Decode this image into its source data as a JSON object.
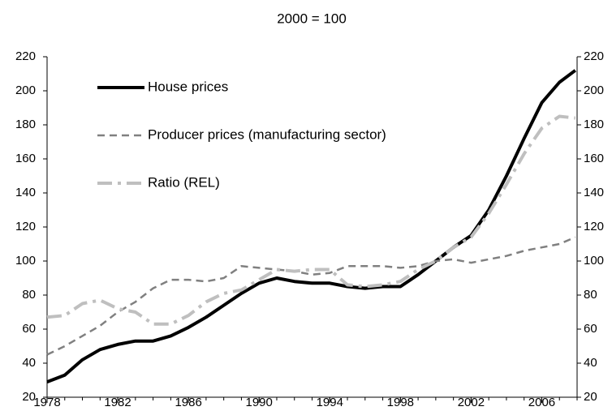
{
  "chart_data": {
    "type": "line",
    "title": "2000 = 100",
    "x": [
      1978,
      1979,
      1980,
      1981,
      1982,
      1983,
      1984,
      1985,
      1986,
      1987,
      1988,
      1989,
      1990,
      1991,
      1992,
      1993,
      1994,
      1995,
      1996,
      1997,
      1998,
      1999,
      2000,
      2001,
      2002,
      2003,
      2004,
      2005,
      2006,
      2007,
      2007.9
    ],
    "series": [
      {
        "name": "House prices",
        "color": "#000000",
        "values": [
          29,
          33,
          42,
          48,
          51,
          53,
          53,
          56,
          61,
          67,
          74,
          81,
          87,
          90,
          88,
          87,
          87,
          85,
          84,
          85,
          85,
          92,
          100,
          108,
          115,
          130,
          150,
          172,
          193,
          205,
          212
        ]
      },
      {
        "name": "Producer prices (manufacturing sector)",
        "color": "#808080",
        "values": [
          45,
          50,
          56,
          62,
          70,
          76,
          84,
          89,
          89,
          88,
          90,
          97,
          96,
          95,
          94,
          92,
          93,
          97,
          97,
          97,
          96,
          97,
          100,
          101,
          99,
          101,
          103,
          106,
          108,
          110,
          114
        ]
      },
      {
        "name": "Ratio (REL)",
        "color": "#bfbfbf",
        "values": [
          67,
          68,
          75,
          77,
          72,
          70,
          63,
          63,
          68,
          76,
          81,
          83,
          89,
          95,
          94,
          95,
          95,
          86,
          85,
          86,
          88,
          95,
          100,
          108,
          114,
          128,
          145,
          163,
          178,
          185,
          184
        ]
      }
    ],
    "xlim": [
      1978,
      2008
    ],
    "xticks": [
      1978,
      1982,
      1986,
      1990,
      1994,
      1998,
      2002,
      2006
    ],
    "ylim": [
      20,
      220
    ],
    "yticks": [
      20,
      40,
      60,
      80,
      100,
      120,
      140,
      160,
      180,
      200,
      220
    ],
    "y2lim": [
      20,
      220
    ],
    "y2ticks": [
      20,
      40,
      60,
      80,
      100,
      120,
      140,
      160,
      180,
      200,
      220
    ],
    "grid": false,
    "legend": "upper left"
  }
}
